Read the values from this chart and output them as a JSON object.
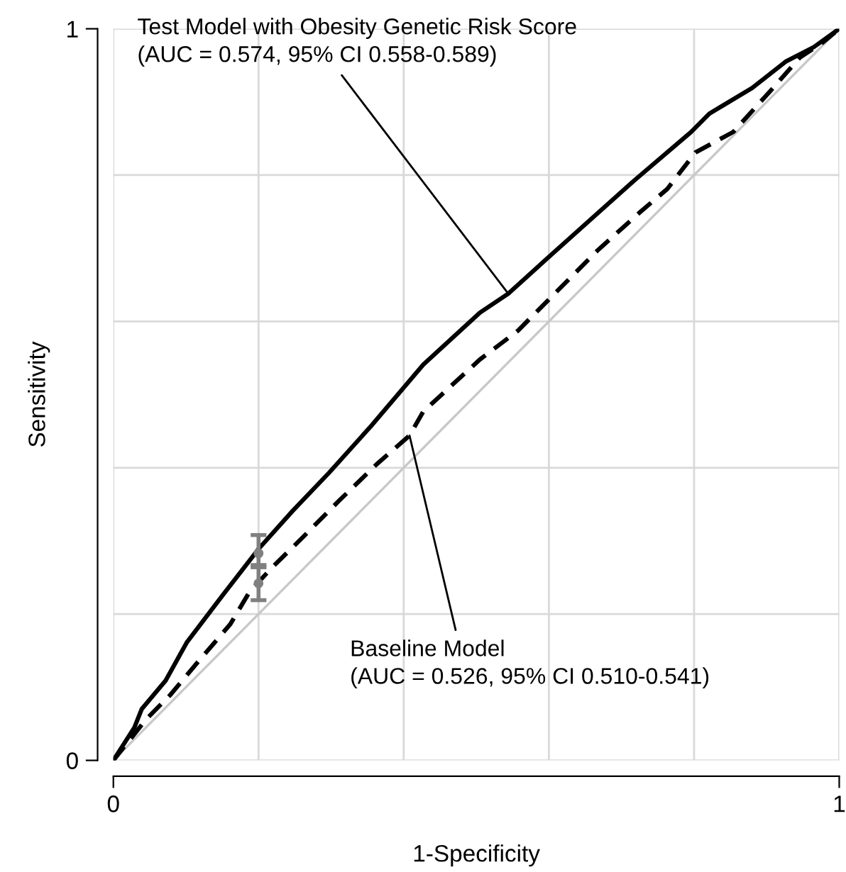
{
  "chart_data": {
    "type": "line",
    "xlabel": "1-Specificity",
    "ylabel": "Sensitivity",
    "xlim": [
      0,
      1
    ],
    "ylim": [
      0,
      1
    ],
    "xticks": [
      0,
      {
        "value": 0.2,
        "label": null
      },
      {
        "value": 0.4,
        "label": null
      },
      {
        "value": 0.6,
        "label": null
      },
      {
        "value": 0.8,
        "label": null
      },
      1
    ],
    "yticks": [
      0,
      {
        "value": 0.2,
        "label": null
      },
      {
        "value": 0.4,
        "label": null
      },
      {
        "value": 0.6,
        "label": null
      },
      {
        "value": 0.8,
        "label": null
      },
      1
    ],
    "grid": true,
    "legend": false,
    "marker": "none",
    "series": [
      {
        "color": "#c8c8c8",
        "line_style": "solid",
        "x": [
          0,
          1
        ],
        "values": [
          0,
          1
        ]
      },
      {
        "color": "#000000",
        "line_style": "solid",
        "x": [
          0,
          0.029,
          0.039,
          0.072,
          0.101,
          0.15,
          0.2,
          0.247,
          0.297,
          0.355,
          0.427,
          0.505,
          0.544,
          0.602,
          0.674,
          0.718,
          0.796,
          0.821,
          0.88,
          0.926,
          0.965,
          1
        ],
        "values": [
          0,
          0.045,
          0.07,
          0.109,
          0.161,
          0.225,
          0.289,
          0.341,
          0.393,
          0.457,
          0.541,
          0.612,
          0.638,
          0.69,
          0.754,
          0.793,
          0.859,
          0.884,
          0.919,
          0.955,
          0.975,
          1
        ]
      },
      {
        "color": "#000000",
        "line_style": "dashed",
        "x": [
          0,
          0.045,
          0.078,
          0.122,
          0.161,
          0.188,
          0.219,
          0.258,
          0.311,
          0.363,
          0.408,
          0.427,
          0.505,
          0.557,
          0.608,
          0.666,
          0.724,
          0.763,
          0.802,
          0.854,
          0.907,
          0.946,
          0.977,
          1
        ],
        "values": [
          0,
          0.056,
          0.089,
          0.141,
          0.186,
          0.231,
          0.264,
          0.302,
          0.355,
          0.405,
          0.444,
          0.477,
          0.548,
          0.587,
          0.638,
          0.696,
          0.748,
          0.781,
          0.831,
          0.859,
          0.917,
          0.961,
          0.981,
          1
        ]
      },
      {
        "type": "scatter",
        "color": "#808080",
        "marker": "circle",
        "x": [
          0.2
        ],
        "values": [
          0.283
        ],
        "errors": [
          [
            0.264,
            0.308
          ]
        ]
      },
      {
        "type": "scatter",
        "color": "#808080",
        "marker": "circle",
        "x": [
          0.2
        ],
        "values": [
          0.242
        ],
        "errors": [
          [
            0.219,
            0.267
          ]
        ]
      }
    ],
    "annotations": [
      {
        "text": "Test Model with Obesity Genetic Risk Score\n(AUC = 0.574, 95% CI 0.558-0.589)",
        "x": 0.544,
        "y": 0.638
      },
      {
        "text": "Baseline Model\n(AUC = 0.526, 95% CI 0.510-0.541)",
        "x": 0.408,
        "y": 0.444
      }
    ]
  }
}
